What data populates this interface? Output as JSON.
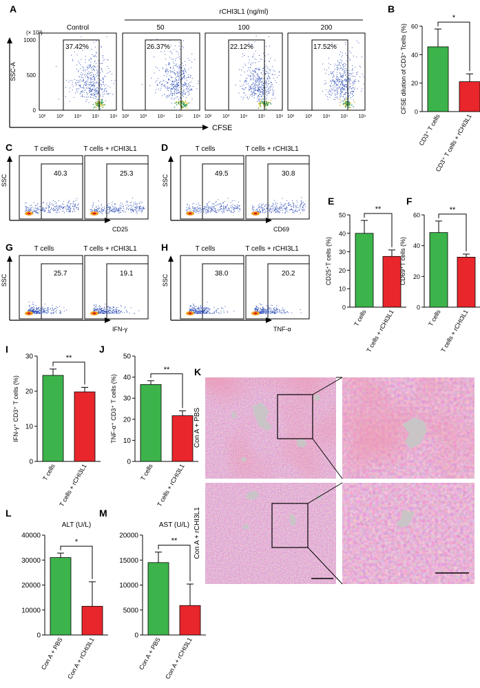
{
  "colors": {
    "green": "#3cb44b",
    "red": "#e8262b",
    "dot_blue": "#2f4fb8",
    "he_pink": "#c8527e",
    "he_purple": "#7a3a8a",
    "vessel": "#c9c5c7"
  },
  "panelA": {
    "label": "A",
    "group_title": "rCHI3L1 (ng/ml)",
    "plots": [
      {
        "title": "Control",
        "pct": "37.42%"
      },
      {
        "title": "50",
        "pct": "26.37%"
      },
      {
        "title": "100",
        "pct": "22.12%"
      },
      {
        "title": "200",
        "pct": "17.52%"
      }
    ],
    "ylabel": "SSC-A",
    "yunit": "(× 10³)",
    "yticks": [
      "0",
      "500",
      "1000"
    ],
    "xticks": [
      "10²",
      "10³",
      "10⁴",
      "10⁵",
      "10⁶"
    ],
    "xlabel": "CFSE"
  },
  "flow_small": {
    "col1": "T cells",
    "col2": "T cells + rCHI3L1",
    "ylabel": "SSC",
    "C": {
      "label": "C",
      "x": "CD25",
      "v1": "40.3",
      "v2": "25.3"
    },
    "D": {
      "label": "D",
      "x": "CD69",
      "v1": "49.5",
      "v2": "30.8"
    },
    "G": {
      "label": "G",
      "x": "IFN-γ",
      "v1": "25.7",
      "v2": "19.1"
    },
    "H": {
      "label": "H",
      "x": "TNF-α",
      "v1": "38.0",
      "v2": "20.2"
    }
  },
  "panelK": {
    "label": "K",
    "row1": "Con A + PBS",
    "row2": "Con A + rCHI3L1"
  },
  "chart_data": [
    {
      "panel": "B",
      "type": "bar",
      "ylabel": "CFSE dilution of CD3⁺ Tcells (%)",
      "categories": [
        "CD3⁺ T cells",
        "CD3⁺ T cells + rCHI3L1"
      ],
      "values": [
        45.5,
        21
      ],
      "errors": [
        12.5,
        5.5
      ],
      "ylim": [
        0,
        60
      ],
      "yticks": [
        "0",
        "20",
        "40",
        "60"
      ],
      "sig": "*"
    },
    {
      "panel": "E",
      "type": "bar",
      "ylabel": "CD25⁺T cells (%)",
      "categories": [
        "T cells",
        "T cells + rCHI3L1"
      ],
      "values": [
        40,
        27.5
      ],
      "errors": [
        7,
        3.5
      ],
      "ylim": [
        0,
        50
      ],
      "yticks": [
        "0",
        "10",
        "20",
        "30",
        "40",
        "50"
      ],
      "sig": "**"
    },
    {
      "panel": "F",
      "type": "bar",
      "ylabel": "CD69⁺T cells (%)",
      "categories": [
        "T cells",
        "T cells + rCHI3L1"
      ],
      "values": [
        48.5,
        32.5
      ],
      "errors": [
        7.5,
        2
      ],
      "ylim": [
        0,
        60
      ],
      "yticks": [
        "0",
        "20",
        "40",
        "60"
      ],
      "sig": "**"
    },
    {
      "panel": "I",
      "type": "bar",
      "ylabel": "IFN-γ⁺ CD3⁺ T cells (%)",
      "categories": [
        "T cells",
        "T cells + rCHI3L1"
      ],
      "values": [
        24.5,
        19.8
      ],
      "errors": [
        1.8,
        1.3
      ],
      "ylim": [
        0,
        30
      ],
      "yticks": [
        "0",
        "10",
        "20",
        "30"
      ],
      "sig": "**"
    },
    {
      "panel": "J",
      "type": "bar",
      "ylabel": "TNF-α⁺ CD3⁺ T cells (%)",
      "categories": [
        "T cells",
        "T cells + rCHI3L1"
      ],
      "values": [
        36.5,
        21.7
      ],
      "errors": [
        1.8,
        2.3
      ],
      "ylim": [
        0,
        50
      ],
      "yticks": [
        "0",
        "10",
        "20",
        "30",
        "40",
        "50"
      ],
      "sig": "**"
    },
    {
      "panel": "L",
      "type": "bar",
      "title": "ALT (U/L)",
      "categories": [
        "Con A + PBS",
        "Con A + rCHI3L1"
      ],
      "values": [
        31000,
        11500
      ],
      "errors": [
        1800,
        9800
      ],
      "ylim": [
        0,
        40000
      ],
      "yticks": [
        "0",
        "10000",
        "20000",
        "30000",
        "40000"
      ],
      "sig": "*"
    },
    {
      "panel": "M",
      "type": "bar",
      "title": "AST (U/L)",
      "categories": [
        "Con A + PBS",
        "Con A + rCHI3L1"
      ],
      "values": [
        14500,
        5900
      ],
      "errors": [
        2100,
        4300
      ],
      "ylim": [
        0,
        20000
      ],
      "yticks": [
        "0",
        "5000",
        "10000",
        "15000",
        "20000"
      ],
      "sig": "**"
    }
  ]
}
